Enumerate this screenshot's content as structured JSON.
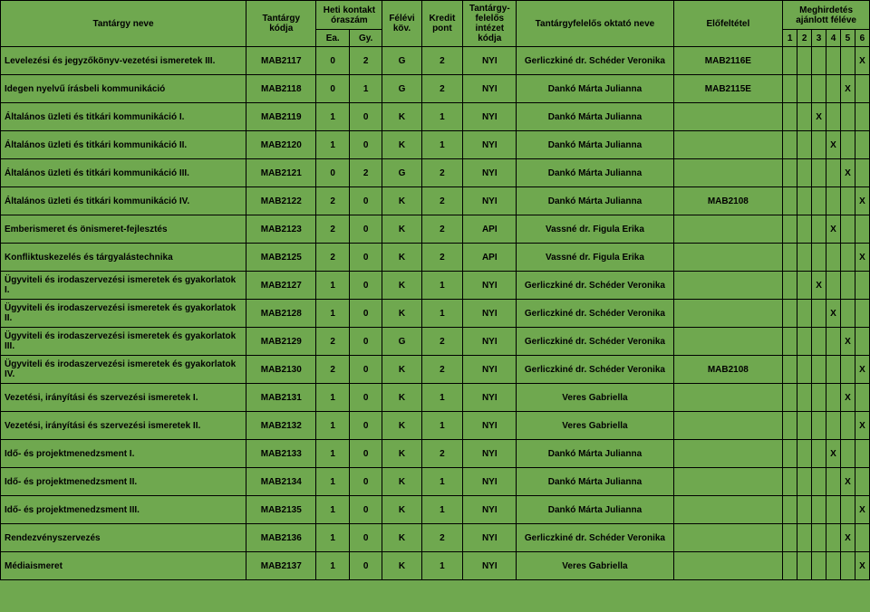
{
  "headers": {
    "name": "Tantárgy neve",
    "code": "Tantárgy kódja",
    "hours": "Heti kontakt óraszám",
    "ea": "Ea.",
    "gy": "Gy.",
    "exam": "Félévi köv.",
    "credit": "Kredit pont",
    "dept": "Tantárgy-felelős intézet kódja",
    "teacher": "Tantárgyfelelős oktató neve",
    "prereq": "Előfeltétel",
    "recommended": "Meghirdetés ajánlott féléve",
    "s1": "1",
    "s2": "2",
    "s3": "3",
    "s4": "4",
    "s5": "5",
    "s6": "6"
  },
  "rows": [
    {
      "name": "Levelezési és jegyzőkönyv-vezetési ismeretek III.",
      "code": "MAB2117",
      "ea": "0",
      "gy": "2",
      "exam": "G",
      "credit": "2",
      "dept": "NYI",
      "teacher": "Gerliczkiné dr. Schéder Veronika",
      "prereq": "MAB2116E",
      "sem": [
        "",
        "",
        "",
        "",
        "",
        "X"
      ]
    },
    {
      "name": "Idegen nyelvű írásbeli kommunikáció",
      "code": "MAB2118",
      "ea": "0",
      "gy": "1",
      "exam": "G",
      "credit": "2",
      "dept": "NYI",
      "teacher": "Dankó Márta Julianna",
      "prereq": "MAB2115E",
      "sem": [
        "",
        "",
        "",
        "",
        "X",
        ""
      ]
    },
    {
      "name": "Általános üzleti és titkári kommunikáció I.",
      "code": "MAB2119",
      "ea": "1",
      "gy": "0",
      "exam": "K",
      "credit": "1",
      "dept": "NYI",
      "teacher": "Dankó Márta Julianna",
      "prereq": "",
      "sem": [
        "",
        "",
        "X",
        "",
        "",
        ""
      ]
    },
    {
      "name": "Általános üzleti és titkári kommunikáció II.",
      "code": "MAB2120",
      "ea": "1",
      "gy": "0",
      "exam": "K",
      "credit": "1",
      "dept": "NYI",
      "teacher": "Dankó Márta Julianna",
      "prereq": "",
      "sem": [
        "",
        "",
        "",
        "X",
        "",
        ""
      ]
    },
    {
      "name": "Általános üzleti és titkári kommunikáció III.",
      "code": "MAB2121",
      "ea": "0",
      "gy": "2",
      "exam": "G",
      "credit": "2",
      "dept": "NYI",
      "teacher": "Dankó Márta Julianna",
      "prereq": "",
      "sem": [
        "",
        "",
        "",
        "",
        "X",
        ""
      ]
    },
    {
      "name": "Általános üzleti és titkári kommunikáció IV.",
      "code": "MAB2122",
      "ea": "2",
      "gy": "0",
      "exam": "K",
      "credit": "2",
      "dept": "NYI",
      "teacher": "Dankó Márta Julianna",
      "prereq": "MAB2108",
      "sem": [
        "",
        "",
        "",
        "",
        "",
        "X"
      ]
    },
    {
      "name": "Emberismeret és önismeret-fejlesztés",
      "code": "MAB2123",
      "ea": "2",
      "gy": "0",
      "exam": "K",
      "credit": "2",
      "dept": "API",
      "teacher": "Vassné dr. Figula Erika",
      "prereq": "",
      "sem": [
        "",
        "",
        "",
        "X",
        "",
        ""
      ]
    },
    {
      "name": "Konfliktuskezelés és tárgyalástechnika",
      "code": "MAB2125",
      "ea": "2",
      "gy": "0",
      "exam": "K",
      "credit": "2",
      "dept": "API",
      "teacher": "Vassné dr. Figula Erika",
      "prereq": "",
      "sem": [
        "",
        "",
        "",
        "",
        "",
        "X"
      ]
    },
    {
      "name": "Ügyviteli és irodaszervezési ismeretek és gyakorlatok I.",
      "code": "MAB2127",
      "ea": "1",
      "gy": "0",
      "exam": "K",
      "credit": "1",
      "dept": "NYI",
      "teacher": "Gerliczkiné dr. Schéder Veronika",
      "prereq": "",
      "sem": [
        "",
        "",
        "X",
        "",
        "",
        ""
      ]
    },
    {
      "name": "Ügyviteli és irodaszervezési ismeretek és gyakorlatok II.",
      "code": "MAB2128",
      "ea": "1",
      "gy": "0",
      "exam": "K",
      "credit": "1",
      "dept": "NYI",
      "teacher": "Gerliczkiné dr. Schéder Veronika",
      "prereq": "",
      "sem": [
        "",
        "",
        "",
        "X",
        "",
        ""
      ]
    },
    {
      "name": "Ügyviteli és irodaszervezési ismeretek és gyakorlatok III.",
      "code": "MAB2129",
      "ea": "2",
      "gy": "0",
      "exam": "G",
      "credit": "2",
      "dept": "NYI",
      "teacher": "Gerliczkiné dr. Schéder Veronika",
      "prereq": "",
      "sem": [
        "",
        "",
        "",
        "",
        "X",
        ""
      ]
    },
    {
      "name": "Ügyviteli és irodaszervezési ismeretek és gyakorlatok IV.",
      "code": "MAB2130",
      "ea": "2",
      "gy": "0",
      "exam": "K",
      "credit": "2",
      "dept": "NYI",
      "teacher": "Gerliczkiné dr. Schéder Veronika",
      "prereq": "MAB2108",
      "sem": [
        "",
        "",
        "",
        "",
        "",
        "X"
      ]
    },
    {
      "name": "Vezetési, irányítási és szervezési ismeretek I.",
      "code": "MAB2131",
      "ea": "1",
      "gy": "0",
      "exam": "K",
      "credit": "1",
      "dept": "NYI",
      "teacher": "Veres Gabriella",
      "prereq": "",
      "sem": [
        "",
        "",
        "",
        "",
        "X",
        ""
      ]
    },
    {
      "name": "Vezetési, irányítási és szervezési ismeretek II.",
      "code": "MAB2132",
      "ea": "1",
      "gy": "0",
      "exam": "K",
      "credit": "1",
      "dept": "NYI",
      "teacher": "Veres Gabriella",
      "prereq": "",
      "sem": [
        "",
        "",
        "",
        "",
        "",
        "X"
      ]
    },
    {
      "name": "Idő- és projektmenedzsment I.",
      "code": "MAB2133",
      "ea": "1",
      "gy": "0",
      "exam": "K",
      "credit": "2",
      "dept": "NYI",
      "teacher": "Dankó Márta Julianna",
      "prereq": "",
      "sem": [
        "",
        "",
        "",
        "X",
        "",
        ""
      ]
    },
    {
      "name": "Idő- és projektmenedzsment II.",
      "code": "MAB2134",
      "ea": "1",
      "gy": "0",
      "exam": "K",
      "credit": "1",
      "dept": "NYI",
      "teacher": "Dankó Márta Julianna",
      "prereq": "",
      "sem": [
        "",
        "",
        "",
        "",
        "X",
        ""
      ]
    },
    {
      "name": "Idő- és projektmenedzsment III.",
      "code": "MAB2135",
      "ea": "1",
      "gy": "0",
      "exam": "K",
      "credit": "1",
      "dept": "NYI",
      "teacher": "Dankó Márta Julianna",
      "prereq": "",
      "sem": [
        "",
        "",
        "",
        "",
        "",
        "X"
      ]
    },
    {
      "name": "Rendezvényszervezés",
      "code": "MAB2136",
      "ea": "1",
      "gy": "0",
      "exam": "K",
      "credit": "2",
      "dept": "NYI",
      "teacher": "Gerliczkiné dr. Schéder Veronika",
      "prereq": "",
      "sem": [
        "",
        "",
        "",
        "",
        "X",
        ""
      ]
    },
    {
      "name": "Médiaismeret",
      "code": "MAB2137",
      "ea": "1",
      "gy": "0",
      "exam": "K",
      "credit": "1",
      "dept": "NYI",
      "teacher": "Veres Gabriella",
      "prereq": "",
      "sem": [
        "",
        "",
        "",
        "",
        "",
        "X"
      ]
    }
  ]
}
